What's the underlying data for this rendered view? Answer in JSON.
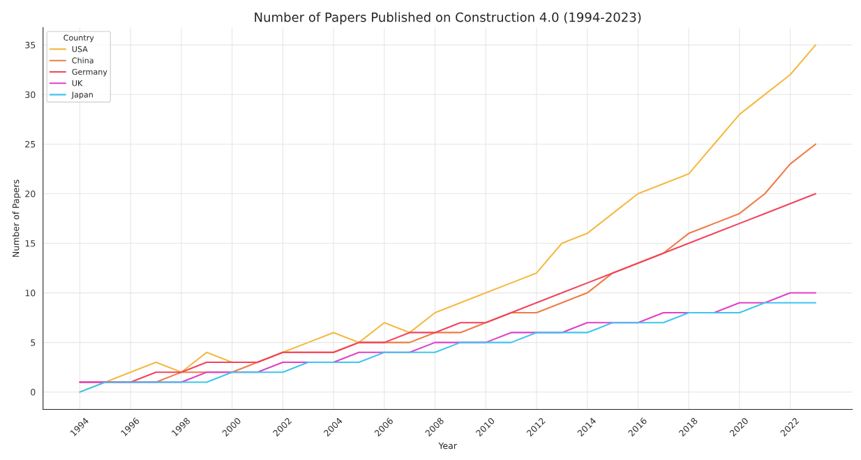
{
  "chart_data": {
    "type": "line",
    "title": "Number of Papers Published on Construction 4.0 (1994-2023)",
    "xlabel": "Year",
    "ylabel": "Number of Papers",
    "legend_title": "Country",
    "x": [
      1994,
      1995,
      1996,
      1997,
      1998,
      1999,
      2000,
      2001,
      2002,
      2003,
      2004,
      2005,
      2006,
      2007,
      2008,
      2009,
      2010,
      2011,
      2012,
      2013,
      2014,
      2015,
      2016,
      2017,
      2018,
      2019,
      2020,
      2021,
      2022,
      2023
    ],
    "series": [
      {
        "name": "USA",
        "color": "#f4b942",
        "values": [
          0,
          1,
          2,
          3,
          2,
          4,
          3,
          3,
          4,
          5,
          6,
          5,
          7,
          6,
          8,
          9,
          10,
          11,
          12,
          15,
          16,
          18,
          20,
          21,
          22,
          25,
          28,
          30,
          32,
          35
        ]
      },
      {
        "name": "China",
        "color": "#ef7b45",
        "values": [
          1,
          1,
          1,
          1,
          2,
          2,
          2,
          3,
          4,
          4,
          4,
          5,
          5,
          5,
          6,
          6,
          7,
          8,
          8,
          9,
          10,
          12,
          13,
          14,
          16,
          17,
          18,
          20,
          23,
          25
        ]
      },
      {
        "name": "Germany",
        "color": "#f2435b",
        "values": [
          1,
          1,
          1,
          2,
          2,
          3,
          3,
          3,
          4,
          4,
          4,
          5,
          5,
          6,
          6,
          7,
          7,
          8,
          9,
          10,
          11,
          12,
          13,
          14,
          15,
          16,
          17,
          18,
          19,
          20
        ]
      },
      {
        "name": "UK",
        "color": "#e040c8",
        "values": [
          1,
          1,
          1,
          1,
          1,
          2,
          2,
          2,
          3,
          3,
          3,
          4,
          4,
          4,
          5,
          5,
          5,
          6,
          6,
          6,
          7,
          7,
          7,
          8,
          8,
          8,
          9,
          9,
          10,
          10
        ]
      },
      {
        "name": "Japan",
        "color": "#40c4f0",
        "values": [
          0,
          1,
          1,
          1,
          1,
          1,
          2,
          2,
          2,
          3,
          3,
          3,
          4,
          4,
          4,
          5,
          5,
          5,
          6,
          6,
          6,
          7,
          7,
          7,
          8,
          8,
          8,
          9,
          9,
          9
        ]
      }
    ],
    "xlim": [
      1992.55,
      2024.45
    ],
    "xticks": [
      1994,
      1996,
      1998,
      2000,
      2002,
      2004,
      2006,
      2008,
      2010,
      2012,
      2014,
      2016,
      2018,
      2020,
      2022
    ],
    "ylim": [
      -1.75,
      36.75
    ],
    "yticks": [
      0,
      5,
      10,
      15,
      20,
      25,
      30,
      35
    ],
    "grid": true,
    "legend": "top left",
    "marker": "none",
    "line_style": "solid"
  }
}
